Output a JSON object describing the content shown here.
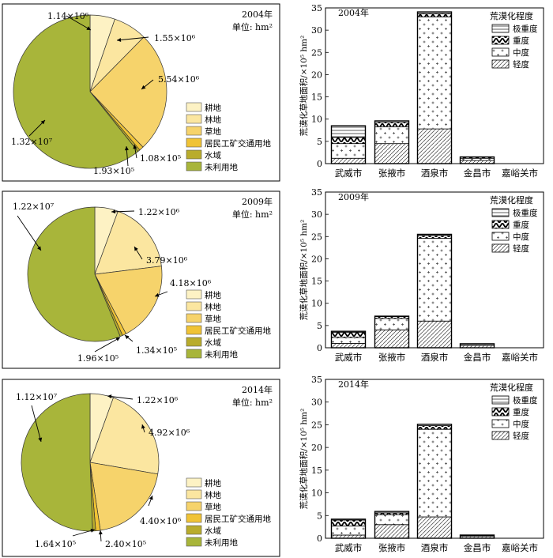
{
  "colors": {
    "farmland": "#fdf2c4",
    "forest": "#fbe6a0",
    "grassland": "#f6d36b",
    "construction": "#f0c335",
    "water": "#b9ac2c",
    "unused": "#a8b53a",
    "bar_fill": "#ffffff",
    "frame": "#000000"
  },
  "chart_data": [
    {
      "type": "pie",
      "title": "2004年",
      "unit": "单位: hm²",
      "legend": [
        "耕地",
        "林地",
        "草地",
        "居民工矿交通用地",
        "水域",
        "未利用地"
      ],
      "values": [
        1140000,
        1550000,
        5540000,
        193000,
        108000,
        13200000
      ],
      "labels": [
        "1.14×10⁶",
        "1.55×10⁶",
        "5.54×10⁶",
        "1.93×10⁵",
        "1.08×10⁵",
        "1.32×10⁷"
      ]
    },
    {
      "type": "bar",
      "title": "2004年",
      "ylabel": "荒漠化草地面积/×10⁵ hm²",
      "ylim": [
        0,
        35
      ],
      "yticks": [
        0,
        5,
        10,
        15,
        20,
        25,
        30,
        35
      ],
      "categories": [
        "武威市",
        "张掖市",
        "酒泉市",
        "金昌市",
        "嘉峪关市"
      ],
      "legend_title": "荒漠化程度",
      "series": [
        {
          "name": "轻度",
          "values": [
            1.2,
            4.5,
            7.8,
            0.7,
            0
          ]
        },
        {
          "name": "中度",
          "values": [
            3.3,
            3.8,
            25.2,
            0.5,
            0
          ]
        },
        {
          "name": "重度",
          "values": [
            1.4,
            1.0,
            0.7,
            0.3,
            0
          ]
        },
        {
          "name": "极重度",
          "values": [
            2.6,
            0.3,
            0.4,
            0,
            0
          ]
        }
      ]
    },
    {
      "type": "pie",
      "title": "2009年",
      "unit": "单位: hm²",
      "legend": [
        "耕地",
        "林地",
        "草地",
        "居民工矿交通用地",
        "水域",
        "未利用地"
      ],
      "values": [
        1220000,
        3790000,
        4180000,
        196000,
        134000,
        12200000
      ],
      "labels": [
        "1.22×10⁶",
        "3.79×10⁶",
        "4.18×10⁶",
        "1.96×10⁵",
        "1.34×10⁵",
        "1.22×10⁷"
      ]
    },
    {
      "type": "bar",
      "title": "2009年",
      "ylabel": "荒漠化草地面积/×10⁵ hm²",
      "ylim": [
        0,
        35
      ],
      "yticks": [
        0,
        5,
        10,
        15,
        20,
        25,
        30,
        35
      ],
      "categories": [
        "武威市",
        "张掖市",
        "酒泉市",
        "金昌市",
        "嘉峪关市"
      ],
      "legend_title": "荒漠化程度",
      "series": [
        {
          "name": "轻度",
          "values": [
            1.0,
            4.0,
            6.0,
            0.5,
            0
          ]
        },
        {
          "name": "中度",
          "values": [
            1.3,
            2.6,
            18.6,
            0.3,
            0
          ]
        },
        {
          "name": "重度",
          "values": [
            1.2,
            0.4,
            0.6,
            0.1,
            0
          ]
        },
        {
          "name": "极重度",
          "values": [
            0.2,
            0.1,
            0.3,
            0,
            0
          ]
        }
      ]
    },
    {
      "type": "pie",
      "title": "2014年",
      "unit": "单位: hm²",
      "legend": [
        "耕地",
        "林地",
        "草地",
        "居民工矿交通用地",
        "水域",
        "未利用地"
      ],
      "values": [
        1220000,
        4920000,
        4400000,
        240000,
        164000,
        11200000
      ],
      "labels": [
        "1.22×10⁶",
        "4.92×10⁶",
        "4.40×10⁶",
        "2.40×10⁵",
        "1.64×10⁵",
        "1.12×10⁷"
      ]
    },
    {
      "type": "bar",
      "title": "2014年",
      "ylabel": "荒漠化草地面积/×10⁵ hm²",
      "ylim": [
        0,
        35
      ],
      "yticks": [
        0,
        5,
        10,
        15,
        20,
        25,
        30,
        35
      ],
      "categories": [
        "武威市",
        "张掖市",
        "酒泉市",
        "金昌市",
        "嘉峪关市"
      ],
      "legend_title": "荒漠化程度",
      "series": [
        {
          "name": "轻度",
          "values": [
            0.7,
            3.0,
            4.7,
            0.4,
            0
          ]
        },
        {
          "name": "中度",
          "values": [
            2.0,
            2.2,
            19.3,
            0.2,
            0
          ]
        },
        {
          "name": "重度",
          "values": [
            1.3,
            0.4,
            0.8,
            0.1,
            0
          ]
        },
        {
          "name": "极重度",
          "values": [
            0.2,
            0.3,
            0.3,
            0,
            0
          ]
        }
      ]
    }
  ]
}
